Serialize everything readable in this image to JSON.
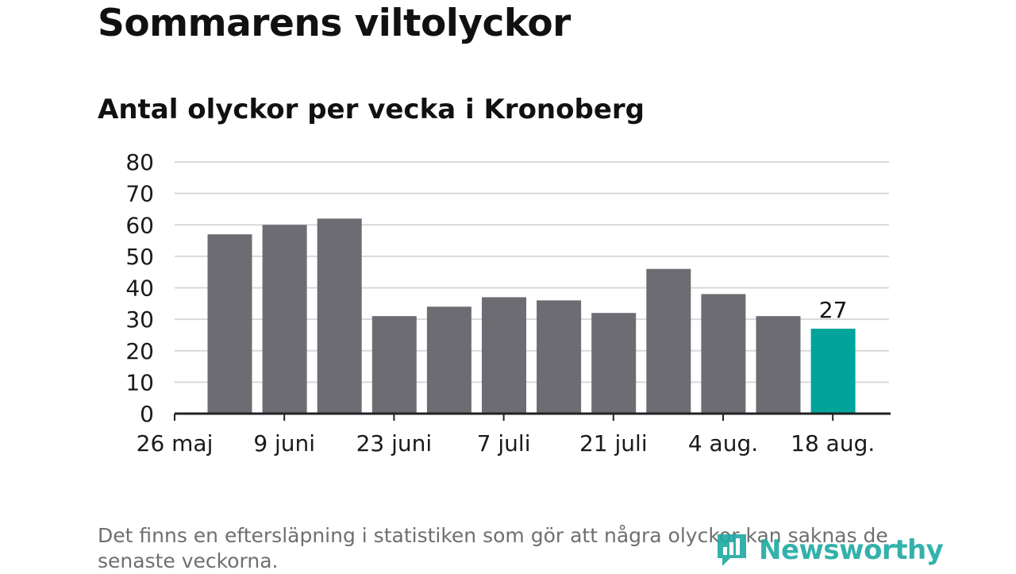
{
  "header": {
    "title": "Sommarens viltolyckor",
    "subtitle": "Antal olyckor per vecka i Kronoberg"
  },
  "chart_data": {
    "type": "bar",
    "title": "Sommarens viltolyckor",
    "subtitle": "Antal olyckor per vecka i Kronoberg",
    "xlabel": "",
    "ylabel": "",
    "ylim": [
      0,
      80
    ],
    "yticks": [
      0,
      10,
      20,
      30,
      40,
      50,
      60,
      70,
      80
    ],
    "xticks": [
      "26 maj",
      "9 juni",
      "23 juni",
      "7 juli",
      "21 juli",
      "4 aug.",
      "18 aug."
    ],
    "grid": true,
    "values": [
      57,
      60,
      62,
      31,
      34,
      37,
      36,
      32,
      46,
      38,
      31,
      27
    ],
    "highlight_index": 11,
    "data_labels": [
      {
        "index": 11,
        "text": "27"
      }
    ],
    "colors": {
      "bar": "#6d6c72",
      "highlight": "#00a49b",
      "grid": "#d9d9d9",
      "axis": "#222222"
    }
  },
  "footnote": "Det finns en eftersläpning i statistiken som gör att några olyckor kan saknas de senaste veckorna.",
  "logo": {
    "text": "Newsworthy",
    "icon": "newsworthy-chart-icon"
  }
}
